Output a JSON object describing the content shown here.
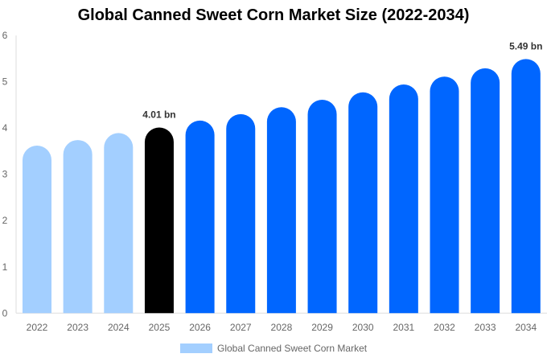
{
  "chart_data": {
    "type": "bar",
    "title": "Global Canned Sweet Corn Market Size (2022-2034)",
    "categories": [
      "2022",
      "2023",
      "2024",
      "2025",
      "2026",
      "2027",
      "2028",
      "2029",
      "2030",
      "2031",
      "2032",
      "2033",
      "2034"
    ],
    "series": [
      {
        "name": "Global Canned Sweet Corn Market",
        "values": [
          3.62,
          3.74,
          3.89,
          4.01,
          4.16,
          4.3,
          4.45,
          4.61,
          4.77,
          4.94,
          5.11,
          5.29,
          5.49
        ]
      }
    ],
    "ylim": [
      0,
      6
    ],
    "yticks": [
      0,
      1,
      2,
      3,
      4,
      5,
      6
    ],
    "data_labels": {
      "3": "4.01 bn",
      "12": "5.49 bn"
    },
    "colors": {
      "historical": "#a3cfff",
      "current": "#000000",
      "forecast": "#0066ff"
    },
    "grid": false,
    "legend_position": "bottom"
  }
}
